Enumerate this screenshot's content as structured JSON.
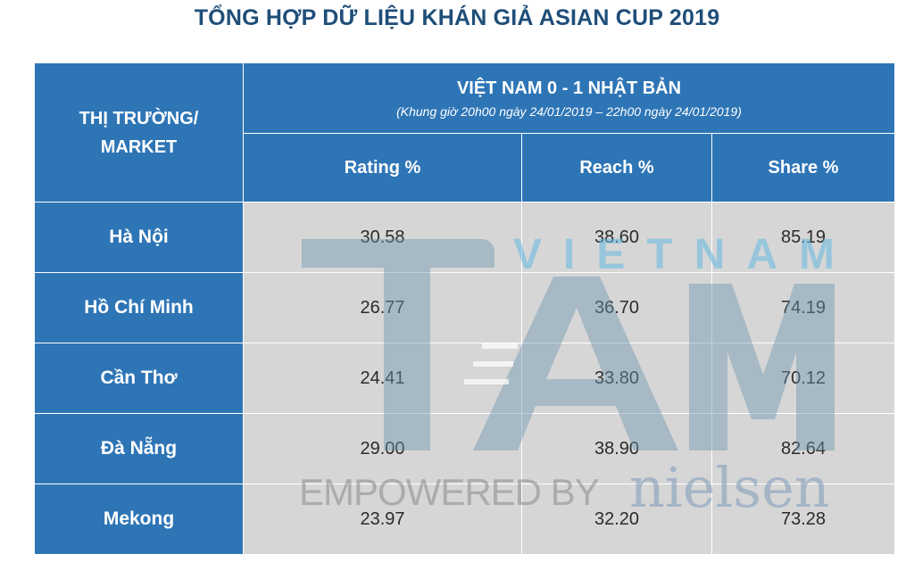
{
  "title": "TỔNG HỢP DỮ LIỆU KHÁN GIẢ ASIAN CUP 2019",
  "table": {
    "market_header_line1": "THỊ TRƯỜNG/",
    "market_header_line2": "MARKET",
    "match_title": "VIỆT NAM  0 - 1  NHẬT BẢN",
    "match_subtitle": "(Khung giờ 20h00 ngày 24/01/2019 – 22h00 ngày 24/01/2019)",
    "columns": [
      "Rating %",
      "Reach %",
      "Share %"
    ],
    "rows": [
      {
        "market": "Hà Nội",
        "rating": "30.58",
        "reach": "38.60",
        "share": "85.19"
      },
      {
        "market": "Hồ Chí Minh",
        "rating": "26.77",
        "reach": "36.70",
        "share": "74.19"
      },
      {
        "market": "Cần Thơ",
        "rating": "24.41",
        "reach": "33.80",
        "share": "70.12"
      },
      {
        "market": "Đà Nẵng",
        "rating": "29.00",
        "reach": "38.90",
        "share": "82.64"
      },
      {
        "market": "Mekong",
        "rating": "23.97",
        "reach": "32.20",
        "share": "73.28"
      }
    ]
  },
  "watermark": {
    "logo_word": "VIETNAM",
    "logo_letters": "TAM",
    "empowered": "EMPOWERED BY",
    "brand": "nielsen"
  },
  "colors": {
    "header_blue": "#2e75b6",
    "title_blue": "#1f4e79",
    "cell_gray": "#d6d6d6"
  }
}
